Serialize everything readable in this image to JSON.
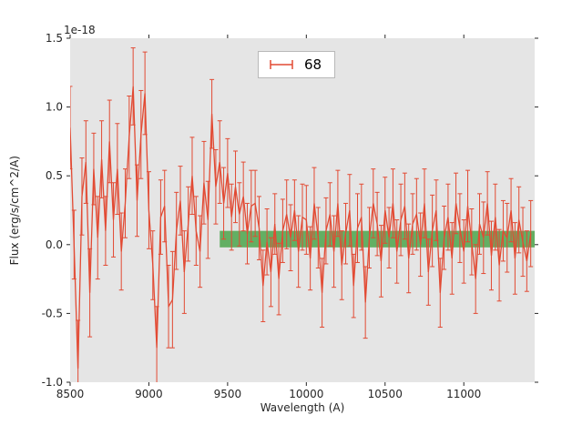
{
  "chart_data": {
    "type": "line",
    "style": "errorbar",
    "title": "",
    "xlabel": "Wavelength (A)",
    "ylabel": "Flux (erg/s/cm^2/A)",
    "offset_text": "1e-18",
    "xlim": [
      8500,
      11450
    ],
    "ylim": [
      -1.0,
      1.5
    ],
    "xticks": [
      8500,
      9000,
      9500,
      10000,
      10500,
      11000
    ],
    "yticks": [
      -1.0,
      -0.5,
      0.0,
      0.5,
      1.0,
      1.5
    ],
    "grid": false,
    "legend": {
      "label": "68",
      "position": "upper center"
    },
    "colors": {
      "line": "#E24A33",
      "band": "#4CA64C",
      "plot_bg": "#E5E5E5",
      "tick": "#262626",
      "label": "#262626"
    },
    "band": {
      "x_start": 9450,
      "x_end": 11450,
      "y_low": -0.02,
      "y_high": 0.1
    },
    "series": [
      {
        "name": "68",
        "x_start": 8500,
        "x_step": 25,
        "y": [
          0.85,
          0.0,
          -0.9,
          0.35,
          0.6,
          -0.35,
          0.55,
          0.05,
          0.62,
          0.1,
          0.75,
          0.18,
          0.55,
          -0.05,
          0.3,
          0.78,
          1.15,
          0.32,
          0.8,
          1.1,
          0.25,
          -0.15,
          -0.75,
          0.2,
          0.28,
          -0.45,
          -0.4,
          0.1,
          0.32,
          -0.2,
          0.15,
          0.5,
          0.1,
          -0.05,
          0.45,
          0.18,
          0.95,
          0.42,
          0.6,
          0.3,
          0.52,
          0.2,
          0.42,
          0.22,
          0.35,
          0.08,
          0.28,
          0.3,
          0.12,
          -0.3,
          0.02,
          -0.2,
          0.15,
          -0.25,
          0.1,
          0.22,
          0.05,
          0.25,
          -0.05,
          0.2,
          0.18,
          -0.1,
          0.3,
          0.05,
          -0.35,
          0.1,
          0.22,
          -0.05,
          0.3,
          -0.15,
          0.08,
          0.25,
          -0.3,
          0.12,
          0.2,
          -0.42,
          0.05,
          0.3,
          0.15,
          -0.12,
          0.25,
          0.05,
          0.3,
          -0.05,
          0.18,
          0.28,
          -0.1,
          0.15,
          0.22,
          0.0,
          0.3,
          -0.2,
          0.1,
          0.25,
          -0.35,
          0.05,
          0.2,
          -0.1,
          0.3,
          0.12,
          -0.05,
          0.28,
          0.02,
          -0.25,
          0.15,
          0.05,
          0.3,
          -0.08,
          0.2,
          -0.15,
          0.1,
          0.05,
          0.25,
          -0.1,
          0.18,
          0.02,
          -0.12,
          0.08
        ],
        "yerr": [
          0.3,
          0.25,
          0.35,
          0.28,
          0.3,
          0.32,
          0.26,
          0.3,
          0.28,
          0.25,
          0.3,
          0.27,
          0.33,
          0.28,
          0.25,
          0.3,
          0.28,
          0.26,
          0.32,
          0.3,
          0.28,
          0.25,
          0.3,
          0.27,
          0.26,
          0.3,
          0.35,
          0.28,
          0.25,
          0.3,
          0.27,
          0.28,
          0.25,
          0.26,
          0.3,
          0.28,
          0.25,
          0.27,
          0.3,
          0.26,
          0.25,
          0.24,
          0.26,
          0.23,
          0.25,
          0.22,
          0.26,
          0.24,
          0.23,
          0.26,
          0.24,
          0.25,
          0.22,
          0.26,
          0.23,
          0.25,
          0.24,
          0.22,
          0.26,
          0.24,
          0.25,
          0.23,
          0.26,
          0.22,
          0.25,
          0.24,
          0.23,
          0.26,
          0.24,
          0.25,
          0.22,
          0.26,
          0.23,
          0.25,
          0.24,
          0.26,
          0.22,
          0.25,
          0.23,
          0.26,
          0.24,
          0.22,
          0.25,
          0.23,
          0.26,
          0.24,
          0.25,
          0.22,
          0.26,
          0.23,
          0.25,
          0.24,
          0.26,
          0.22,
          0.25,
          0.23,
          0.24,
          0.26,
          0.22,
          0.25,
          0.23,
          0.26,
          0.24,
          0.25,
          0.22,
          0.26,
          0.23,
          0.25,
          0.24,
          0.26,
          0.22,
          0.25,
          0.23,
          0.26,
          0.24,
          0.25,
          0.22,
          0.24
        ]
      }
    ]
  }
}
